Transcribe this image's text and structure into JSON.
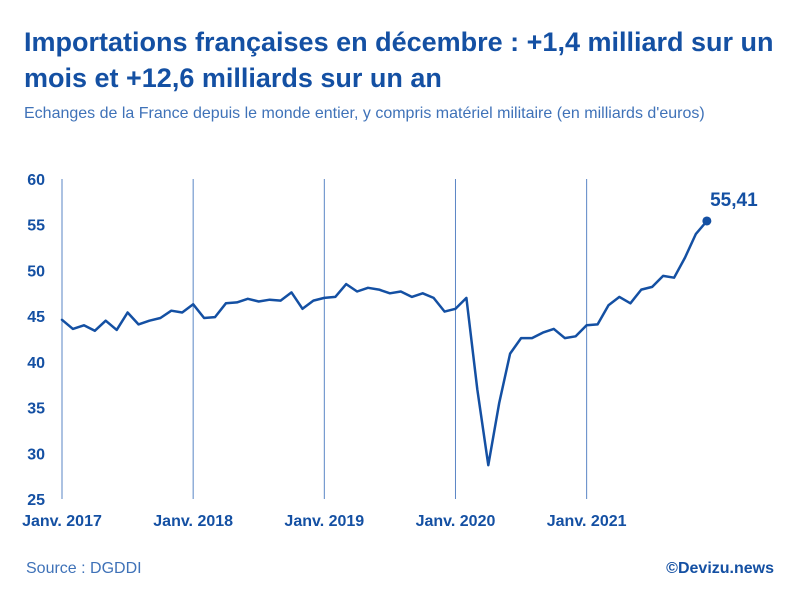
{
  "header": {
    "title": "Importations françaises en décembre : +1,4 milliard sur un mois et +12,6 milliards sur un an",
    "subtitle": "Echanges de la France depuis le monde entier, y compris matériel militaire (en milliards d'euros)"
  },
  "footer": {
    "source": "Source : DGDDI",
    "brand": "©Devizu.news"
  },
  "colors": {
    "line": "#1450a3",
    "text": "#1450a3",
    "subtext": "#3f72b8",
    "grid": "#5a86c5"
  },
  "chart_data": {
    "type": "line",
    "title": "Importations françaises en décembre : +1,4 milliard sur un mois et +12,6 milliards sur un an",
    "xlabel": "",
    "ylabel": "",
    "ylim": [
      25,
      60
    ],
    "yticks": [
      25,
      30,
      35,
      40,
      45,
      50,
      55,
      60
    ],
    "x_start": "Janv. 2017",
    "x_ticks": [
      {
        "index": 0,
        "label": "Janv. 2017"
      },
      {
        "index": 12,
        "label": "Janv. 2018"
      },
      {
        "index": 24,
        "label": "Janv. 2019"
      },
      {
        "index": 36,
        "label": "Janv. 2020"
      },
      {
        "index": 48,
        "label": "Janv. 2021"
      }
    ],
    "series": [
      {
        "name": "Importations",
        "values": [
          44.6,
          43.6,
          44.0,
          43.4,
          44.5,
          43.5,
          45.4,
          44.1,
          44.5,
          44.8,
          45.6,
          45.4,
          46.3,
          44.8,
          44.9,
          46.4,
          46.5,
          46.9,
          46.6,
          46.8,
          46.7,
          47.6,
          45.8,
          46.7,
          47.0,
          47.1,
          48.5,
          47.7,
          48.1,
          47.9,
          47.5,
          47.7,
          47.1,
          47.5,
          47.0,
          45.5,
          45.8,
          47.0,
          37.0,
          28.7,
          35.5,
          40.9,
          42.6,
          42.6,
          43.2,
          43.6,
          42.6,
          42.8,
          44.0,
          44.1,
          46.2,
          47.1,
          46.4,
          47.9,
          48.2,
          49.4,
          49.2,
          51.4,
          54.0,
          55.41
        ]
      }
    ],
    "annotations": [
      {
        "index": 59,
        "value": 55.41,
        "label": "55,41"
      }
    ]
  }
}
